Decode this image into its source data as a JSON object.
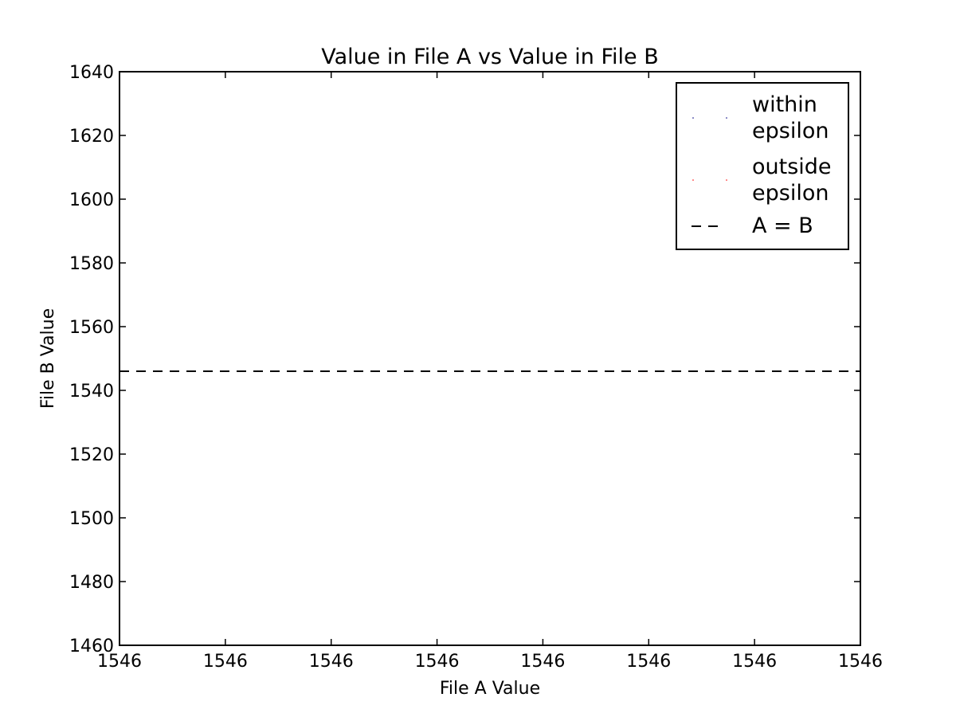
{
  "chart_data": {
    "type": "scatter",
    "title": "Value in File A vs Value in File B",
    "xlabel": "File A Value",
    "ylabel": "File B Value",
    "xticks": [
      "1546",
      "1546",
      "1546",
      "1546",
      "1546",
      "1546",
      "1546",
      "1546"
    ],
    "yticks": [
      1460,
      1480,
      1500,
      1520,
      1540,
      1560,
      1580,
      1600,
      1620,
      1640
    ],
    "ylim": [
      1460,
      1640
    ],
    "grid": false,
    "legend_position": "top-right",
    "series": [
      {
        "name": "within epsilon",
        "label_lines": [
          "within",
          "epsilon"
        ],
        "kind": "points",
        "color": "#000080",
        "points": []
      },
      {
        "name": "outside epsilon",
        "label_lines": [
          "outside",
          "epsilon"
        ],
        "kind": "points",
        "color": "#ff0000",
        "points": []
      },
      {
        "name": "A = B",
        "label_lines": [
          "A = B"
        ],
        "kind": "dashed-line",
        "color": "#000000",
        "y_value": 1546
      }
    ]
  }
}
